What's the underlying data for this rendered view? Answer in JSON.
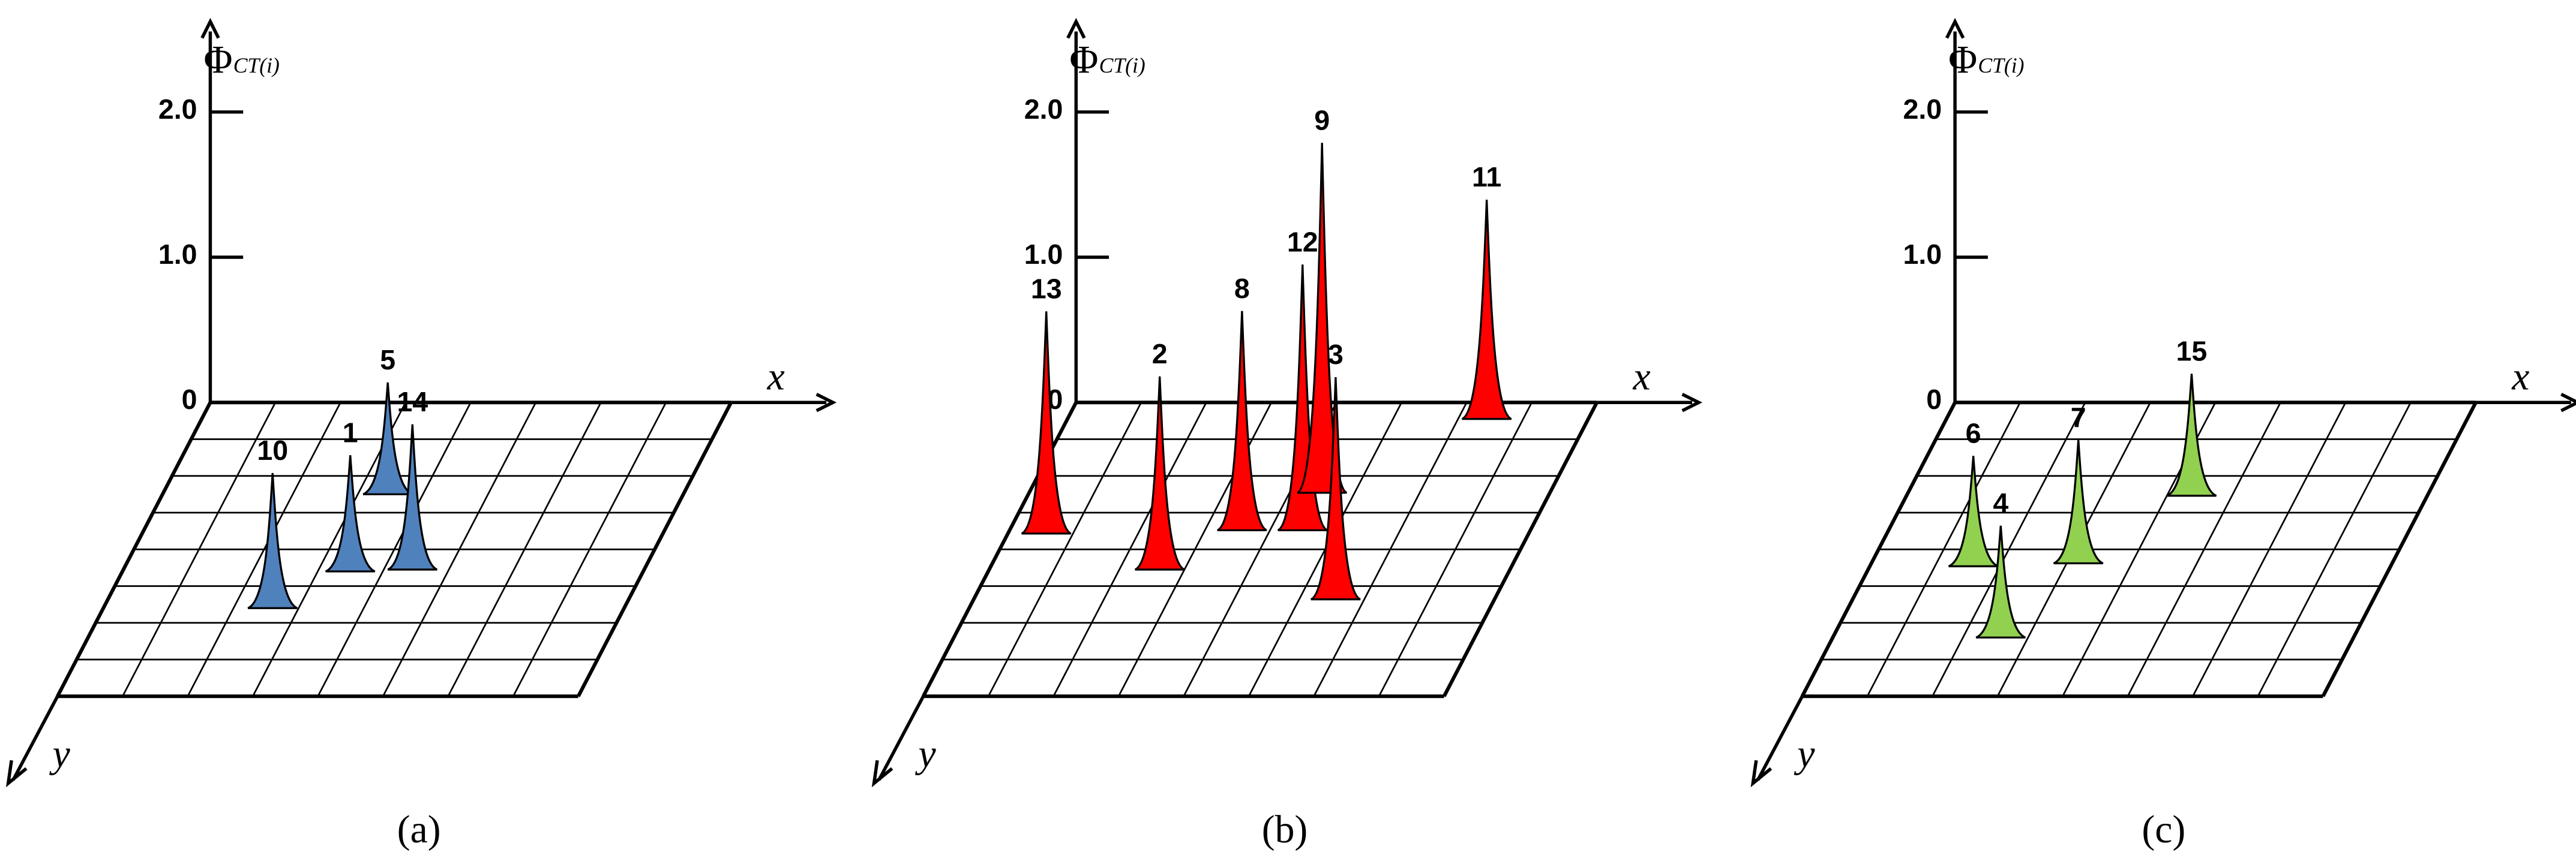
{
  "chart_data": [
    {
      "type": "peaks3d",
      "panel_label": "(a)",
      "z_label": "Φ",
      "z_label_sub": "CT(i)",
      "x_label": "x",
      "y_label": "y",
      "zlim": [
        0,
        2.6
      ],
      "zticks": [
        {
          "value": 0,
          "label": "0"
        },
        {
          "value": 1,
          "label": "1.0"
        },
        {
          "value": 2,
          "label": "2.0"
        }
      ],
      "categories": [
        "10",
        "1",
        "5",
        "14"
      ],
      "values": [
        0.93,
        0.8,
        0.77,
        1.0
      ],
      "color": "#4f81bd"
    },
    {
      "type": "peaks3d",
      "panel_label": "(b)",
      "z_label": "Φ",
      "z_label_sub": "CT(i)",
      "x_label": "x",
      "y_label": "y",
      "zlim": [
        0,
        2.6
      ],
      "zticks": [
        {
          "value": 0,
          "label": "0"
        },
        {
          "value": 1,
          "label": "1.0"
        },
        {
          "value": 2,
          "label": "2.0"
        }
      ],
      "categories": [
        "13",
        "2",
        "8",
        "12",
        "9",
        "3",
        "11"
      ],
      "values": [
        1.53,
        1.33,
        1.51,
        1.83,
        2.41,
        1.53,
        1.51
      ],
      "color": "#ff0000"
    },
    {
      "type": "peaks3d",
      "panel_label": "(c)",
      "z_label": "Φ",
      "z_label_sub": "CT(i)",
      "x_label": "x",
      "y_label": "y",
      "zlim": [
        0,
        2.6
      ],
      "zticks": [
        {
          "value": 0,
          "label": "0"
        },
        {
          "value": 1,
          "label": "1.0"
        },
        {
          "value": 2,
          "label": "2.0"
        }
      ],
      "categories": [
        "6",
        "4",
        "7",
        "15"
      ],
      "values": [
        0.76,
        0.77,
        0.85,
        0.84
      ],
      "color": "#92d050"
    }
  ]
}
